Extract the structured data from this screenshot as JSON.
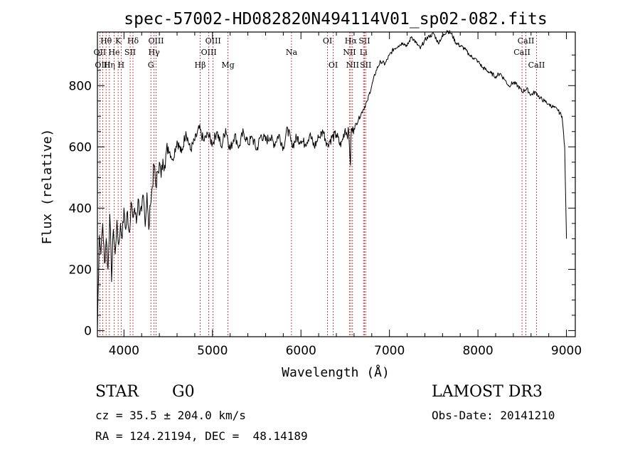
{
  "chart_data": {
    "type": "line",
    "title": "spec-57002-HD082820N494114V01_sp02-082.fits",
    "xlabel": "Wavelength (Å)",
    "ylabel": "Flux (relative)",
    "xlim": [
      3700,
      9100
    ],
    "ylim": [
      -20,
      975
    ],
    "xticks": [
      4000,
      5000,
      6000,
      7000,
      8000,
      9000
    ],
    "yticks": [
      0,
      200,
      400,
      600,
      800
    ],
    "line_color": "#000000",
    "marker_color": "#b22222",
    "grid": false,
    "series": [
      {
        "name": "spectrum",
        "x": [
          3700,
          3720,
          3740,
          3760,
          3780,
          3800,
          3820,
          3840,
          3860,
          3880,
          3900,
          3920,
          3940,
          3960,
          3980,
          4000,
          4020,
          4040,
          4060,
          4080,
          4100,
          4120,
          4140,
          4160,
          4180,
          4200,
          4220,
          4240,
          4260,
          4280,
          4300,
          4320,
          4340,
          4360,
          4380,
          4400,
          4420,
          4440,
          4460,
          4480,
          4500,
          4550,
          4600,
          4650,
          4700,
          4750,
          4800,
          4850,
          4900,
          4950,
          5000,
          5050,
          5100,
          5150,
          5200,
          5250,
          5300,
          5350,
          5400,
          5450,
          5500,
          5550,
          5600,
          5650,
          5700,
          5750,
          5800,
          5850,
          5900,
          5950,
          6000,
          6050,
          6100,
          6150,
          6200,
          6250,
          6300,
          6350,
          6400,
          6450,
          6500,
          6520,
          6540,
          6560,
          6563,
          6570,
          6580,
          6600,
          6650,
          6700,
          6750,
          6800,
          6850,
          6900,
          6950,
          7000,
          7050,
          7100,
          7150,
          7200,
          7250,
          7300,
          7350,
          7400,
          7450,
          7500,
          7550,
          7600,
          7650,
          7700,
          7750,
          7800,
          7850,
          7900,
          7950,
          8000,
          8050,
          8100,
          8150,
          8200,
          8250,
          8300,
          8350,
          8400,
          8450,
          8500,
          8550,
          8600,
          8650,
          8700,
          8750,
          8800,
          8850,
          8900,
          8950,
          8980,
          9000
        ],
        "y": [
          0,
          310,
          250,
          350,
          220,
          300,
          200,
          380,
          160,
          330,
          250,
          360,
          280,
          350,
          300,
          400,
          330,
          390,
          320,
          420,
          370,
          400,
          350,
          430,
          380,
          390,
          440,
          340,
          450,
          330,
          410,
          470,
          540,
          470,
          520,
          550,
          500,
          560,
          540,
          590,
          600,
          560,
          620,
          580,
          650,
          590,
          620,
          660,
          620,
          640,
          610,
          650,
          600,
          660,
          590,
          640,
          600,
          650,
          610,
          630,
          590,
          640,
          620,
          630,
          610,
          640,
          600,
          660,
          600,
          630,
          620,
          610,
          640,
          600,
          630,
          650,
          610,
          630,
          640,
          600,
          660,
          640,
          650,
          540,
          620,
          660,
          650,
          660,
          690,
          720,
          750,
          800,
          850,
          880,
          870,
          900,
          920,
          930,
          940,
          930,
          960,
          940,
          920,
          950,
          960,
          970,
          940,
          960,
          980,
          970,
          940,
          930,
          920,
          900,
          890,
          880,
          860,
          850,
          840,
          830,
          840,
          820,
          800,
          810,
          800,
          780,
          790,
          770,
          780,
          760,
          750,
          740,
          730,
          720,
          700,
          600,
          300
        ]
      }
    ],
    "lines": [
      {
        "label": "Hθ",
        "x": 3798,
        "row": 1
      },
      {
        "label": "OII",
        "x": 3727,
        "row": 2
      },
      {
        "label": "OIII",
        "x": 3760,
        "row": 3
      },
      {
        "label": "Hη",
        "x": 3835,
        "row": 3
      },
      {
        "label": "He",
        "x": 3889,
        "row": 2
      },
      {
        "label": "K",
        "x": 3934,
        "row": 1
      },
      {
        "label": "H",
        "x": 3968,
        "row": 3
      },
      {
        "label": "SII",
        "x": 4070,
        "row": 2
      },
      {
        "label": "Hδ",
        "x": 4102,
        "row": 1
      },
      {
        "label": "G",
        "x": 4304,
        "row": 3
      },
      {
        "label": "OIII",
        "x": 4363,
        "row": 1
      },
      {
        "label": "Hγ",
        "x": 4340,
        "row": 2
      },
      {
        "label": "Hβ",
        "x": 4861,
        "row": 3
      },
      {
        "label": "OIII",
        "x": 4959,
        "row": 2
      },
      {
        "label": "OIII",
        "x": 5007,
        "row": 1
      },
      {
        "label": "Mg",
        "x": 5175,
        "row": 3
      },
      {
        "label": "Na",
        "x": 5893,
        "row": 2
      },
      {
        "label": "OI",
        "x": 6300,
        "row": 1
      },
      {
        "label": "OI",
        "x": 6364,
        "row": 3
      },
      {
        "label": "NII",
        "x": 6548,
        "row": 2
      },
      {
        "label": "Hα",
        "x": 6563,
        "row": 1
      },
      {
        "label": "NII",
        "x": 6583,
        "row": 3
      },
      {
        "label": "SII",
        "x": 6717,
        "row": 1
      },
      {
        "label": "Li",
        "x": 6707,
        "row": 2
      },
      {
        "label": "SII",
        "x": 6731,
        "row": 3
      },
      {
        "label": "CaII",
        "x": 8498,
        "row": 2
      },
      {
        "label": "CaII",
        "x": 8542,
        "row": 1
      },
      {
        "label": "CaII",
        "x": 8662,
        "row": 3
      }
    ]
  },
  "info": {
    "class": "STAR",
    "subclass": "G0",
    "survey": "LAMOST DR3",
    "cz": "cz = 35.5 ± 204.0 km/s",
    "obs_date": "Obs-Date: 20141210",
    "coords": "RA = 124.21194, DEC =  48.14189"
  }
}
